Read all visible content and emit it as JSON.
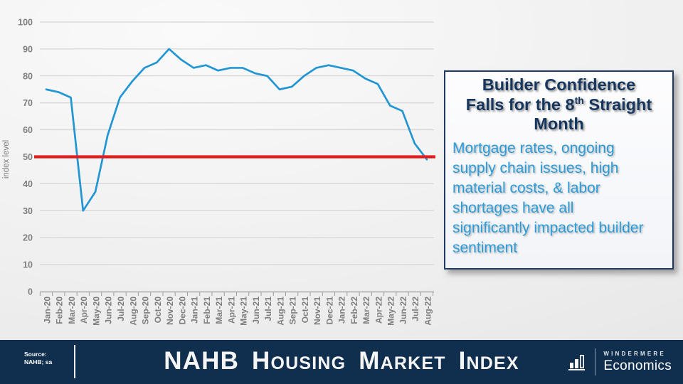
{
  "chart_data": {
    "type": "line",
    "title": "NAHB Housing Market Index",
    "xlabel": "",
    "ylabel": "index level",
    "ylim": [
      0,
      100
    ],
    "ytick_interval": 10,
    "grid": true,
    "legend": "none",
    "categories": [
      "Jan-20",
      "Feb-20",
      "Mar-20",
      "Apr-20",
      "May-20",
      "Jun-20",
      "Jul-20",
      "Aug-20",
      "Sep-20",
      "Oct-20",
      "Nov-20",
      "Dec-20",
      "Jan-21",
      "Feb-21",
      "Mar-21",
      "Apr-21",
      "May-21",
      "Jun-21",
      "Jul-21",
      "Aug-21",
      "Sep-21",
      "Oct-21",
      "Nov-21",
      "Dec-21",
      "Jan-22",
      "Feb-22",
      "Mar-22",
      "Apr-22",
      "May-22",
      "Jun-22",
      "Jul-22",
      "Aug-22"
    ],
    "series": [
      {
        "name": "NAHB Housing Market Index",
        "color": "#2296D3",
        "values": [
          75,
          74,
          72,
          30,
          37,
          58,
          72,
          78,
          83,
          85,
          90,
          86,
          83,
          84,
          82,
          83,
          83,
          81,
          80,
          75,
          76,
          80,
          83,
          84,
          83,
          82,
          79,
          77,
          69,
          67,
          55,
          49
        ]
      }
    ],
    "reference_line": {
      "value": 50,
      "color": "#E01F1F"
    },
    "colors": {
      "grid": "#CDCDCD",
      "axis": "#9B9B9B",
      "tick_labels": "#7F7F7F"
    }
  },
  "annotation_box": {
    "title_line1": "Builder Confidence",
    "title_line2_pre": "Falls for the 8",
    "title_sup": "th",
    "title_line2_post": " Straight",
    "title_line3": "Month",
    "body": "Mortgage rates, ongoing\nsupply chain issues, high\nmaterial costs, & labor\nshortages have all\nsignificantly impacted builder\nsentiment",
    "title_color": "#17365D",
    "body_color": "#2B9CD8",
    "border_color": "#1F3864"
  },
  "footer": {
    "source_line1": "Source:",
    "source_line2": "NAHB; sa",
    "title": "NAHB Housing Market Index",
    "background": "#102E4E",
    "logo_brand": "WINDERMERE",
    "logo_division": "Economics",
    "logo_icon": "bar-chart-icon"
  }
}
